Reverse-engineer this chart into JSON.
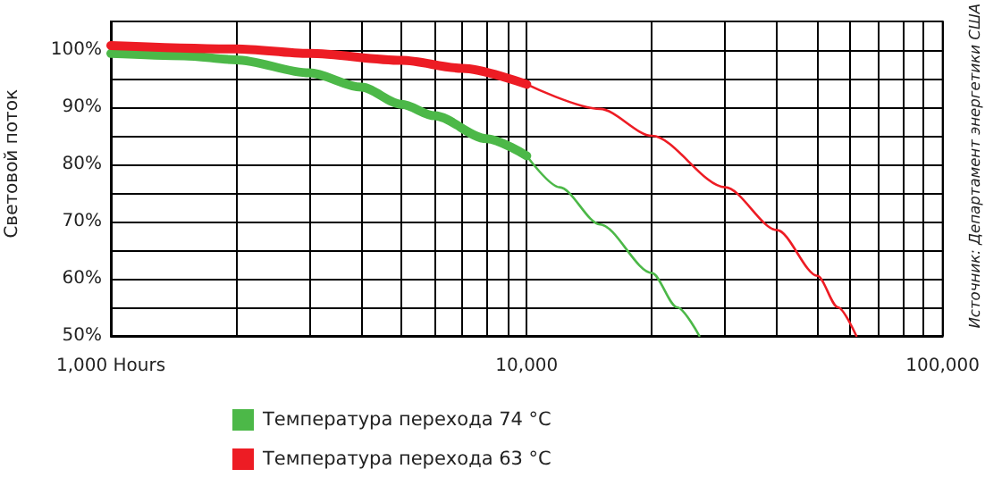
{
  "chart_data": {
    "type": "line",
    "ylabel": "Световой поток",
    "annotations": [
      "Источник: Департамент энергетики США"
    ],
    "log": "x",
    "grid": true,
    "legend": "bottom",
    "marker": "none",
    "line_style": "solid",
    "xlim": [
      1000,
      100000
    ],
    "xticks": [
      {
        "value": 1000,
        "label": "1,000 Hours"
      },
      {
        "value": 2000,
        "label": null
      },
      {
        "value": 3000,
        "label": null
      },
      {
        "value": 4000,
        "label": null
      },
      {
        "value": 5000,
        "label": null
      },
      {
        "value": 6000,
        "label": null
      },
      {
        "value": 7000,
        "label": null
      },
      {
        "value": 8000,
        "label": null
      },
      {
        "value": 9000,
        "label": null
      },
      {
        "value": 10000,
        "label": "10,000"
      },
      {
        "value": 20000,
        "label": null
      },
      {
        "value": 30000,
        "label": null
      },
      {
        "value": 40000,
        "label": null
      },
      {
        "value": 50000,
        "label": null
      },
      {
        "value": 60000,
        "label": null
      },
      {
        "value": 70000,
        "label": null
      },
      {
        "value": 80000,
        "label": null
      },
      {
        "value": 90000,
        "label": null
      },
      {
        "value": 100000,
        "label": "100,000"
      }
    ],
    "ylim": [
      50,
      105
    ],
    "yticks": [
      {
        "value": 50,
        "label": "50%"
      },
      {
        "value": 55,
        "label": null
      },
      {
        "value": 60,
        "label": "60%"
      },
      {
        "value": 65,
        "label": null
      },
      {
        "value": 70,
        "label": "70%"
      },
      {
        "value": 75,
        "label": null
      },
      {
        "value": 80,
        "label": "80%"
      },
      {
        "value": 85,
        "label": null
      },
      {
        "value": 90,
        "label": "90%"
      },
      {
        "value": 95,
        "label": null
      },
      {
        "value": 100,
        "label": "100%"
      }
    ],
    "series": [
      {
        "name": "Температура перехода 74 °C",
        "color": "#4cb848",
        "x": [
          1000,
          1500,
          2000,
          3000,
          4000,
          5000,
          6000,
          8000,
          10000
        ],
        "values": [
          99.4,
          99,
          98.3,
          96,
          93.5,
          90.5,
          88.5,
          84.5,
          81.5
        ]
      },
      {
        "name": "Температура перехода 63 °C",
        "color": "#ed1c24",
        "x": [
          1000,
          2000,
          3000,
          5000,
          7000,
          10000
        ],
        "values": [
          100.8,
          100.2,
          99.4,
          98.2,
          96.8,
          94
        ]
      },
      {
        "color": "#4cb848",
        "x": [
          10000,
          12000,
          15000,
          20000,
          23000,
          26000
        ],
        "values": [
          81.5,
          76,
          69.5,
          61,
          55,
          50
        ]
      },
      {
        "color": "#ed1c24",
        "x": [
          10000,
          15000,
          20000,
          30000,
          40000,
          50000,
          56000,
          62000
        ],
        "values": [
          94,
          89.7,
          85,
          76,
          68.5,
          60.5,
          55,
          50
        ]
      }
    ]
  }
}
